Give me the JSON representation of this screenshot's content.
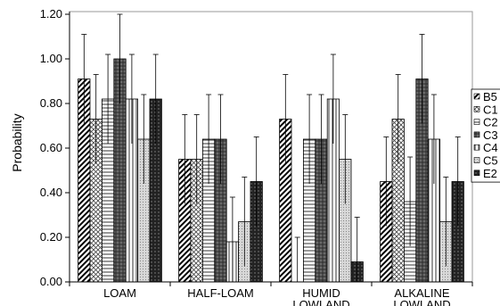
{
  "chart_data": {
    "type": "bar",
    "title": "",
    "xlabel": "",
    "ylabel": "Probability",
    "ylim": [
      0,
      1.2
    ],
    "yticks": [
      "0.00",
      "0.20",
      "0.40",
      "0.60",
      "0.80",
      "1.00",
      "1.20"
    ],
    "ytick_values": [
      0,
      0.2,
      0.4,
      0.6,
      0.8,
      1.0,
      1.2
    ],
    "grid": false,
    "legend_position": "right",
    "categories": [
      [
        "LOAM"
      ],
      [
        "HALF-LOAM"
      ],
      [
        "HUMID",
        "LOWLAND"
      ],
      [
        "ALKALINE",
        "LOWLAND"
      ]
    ],
    "series": [
      {
        "name": "B5",
        "pattern": "diagonal",
        "values": [
          0.91,
          0.55,
          0.73,
          0.45
        ],
        "errors": [
          0.2,
          0.2,
          0.2,
          0.2
        ]
      },
      {
        "name": "C1",
        "pattern": "crosshatch",
        "values": [
          0.73,
          0.55,
          0.0,
          0.73
        ],
        "errors": [
          0.2,
          0.2,
          0.2,
          0.2
        ]
      },
      {
        "name": "C2",
        "pattern": "horizontal",
        "values": [
          0.82,
          0.64,
          0.64,
          0.36
        ],
        "errors": [
          0.2,
          0.2,
          0.2,
          0.2
        ]
      },
      {
        "name": "C3",
        "pattern": "darkcross",
        "values": [
          1.0,
          0.64,
          0.64,
          0.91
        ],
        "errors": [
          0.2,
          0.2,
          0.2,
          0.2
        ]
      },
      {
        "name": "C4",
        "pattern": "vertical",
        "values": [
          0.82,
          0.18,
          0.82,
          0.64
        ],
        "errors": [
          0.2,
          0.2,
          0.2,
          0.2
        ]
      },
      {
        "name": "C5",
        "pattern": "dots",
        "values": [
          0.64,
          0.27,
          0.55,
          0.27
        ],
        "errors": [
          0.2,
          0.2,
          0.2,
          0.2
        ]
      },
      {
        "name": "E2",
        "pattern": "dark",
        "values": [
          0.82,
          0.45,
          0.09,
          0.45
        ],
        "errors": [
          0.2,
          0.2,
          0.2,
          0.2
        ]
      }
    ]
  }
}
